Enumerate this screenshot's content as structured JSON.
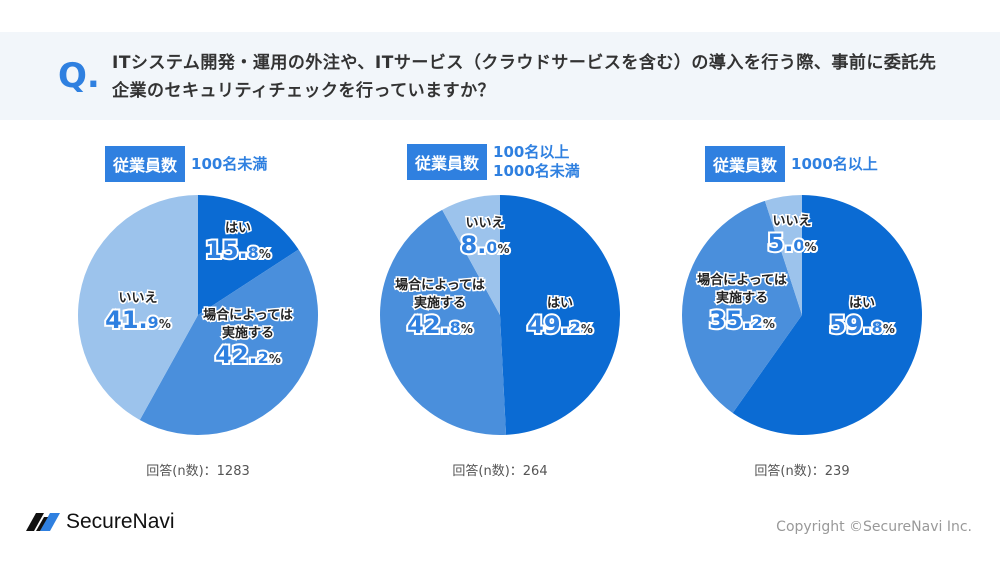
{
  "question": {
    "mark": "Q.",
    "text": "ITシステム開発・運用の外注や、ITサービス（クラウドサービスを含む）の導入を行う際、事前に委託先企業のセキュリティチェックを行っていますか？"
  },
  "colors": {
    "yes": "#0b6bd3",
    "sometimes": "#4a8fdc",
    "no": "#9cc3ec",
    "accent": "#2f80e0"
  },
  "chart_data": [
    {
      "type": "pie",
      "badge": "従業員数",
      "group": [
        "100名未満"
      ],
      "n_label": "回答(n数)：1283",
      "slices": [
        {
          "label": "はい",
          "value": 15.8
        },
        {
          "label": "場合によっては\n実施する",
          "value": 42.2
        },
        {
          "label": "いいえ",
          "value": 41.9
        }
      ]
    },
    {
      "type": "pie",
      "badge": "従業員数",
      "group": [
        "100名以上",
        "1000名未満"
      ],
      "n_label": "回答(n数)：264",
      "slices": [
        {
          "label": "はい",
          "value": 49.2
        },
        {
          "label": "場合によっては\n実施する",
          "value": 42.8
        },
        {
          "label": "いいえ",
          "value": 8.0
        }
      ]
    },
    {
      "type": "pie",
      "badge": "従業員数",
      "group": [
        "1000名以上"
      ],
      "n_label": "回答(n数)：239",
      "slices": [
        {
          "label": "はい",
          "value": 59.8
        },
        {
          "label": "場合によっては\n実施する",
          "value": 35.2
        },
        {
          "label": "いいえ",
          "value": 5.0
        }
      ]
    }
  ],
  "footer": {
    "logo": "SecureNavi",
    "copyright": "Copyright ©SecureNavi Inc."
  }
}
